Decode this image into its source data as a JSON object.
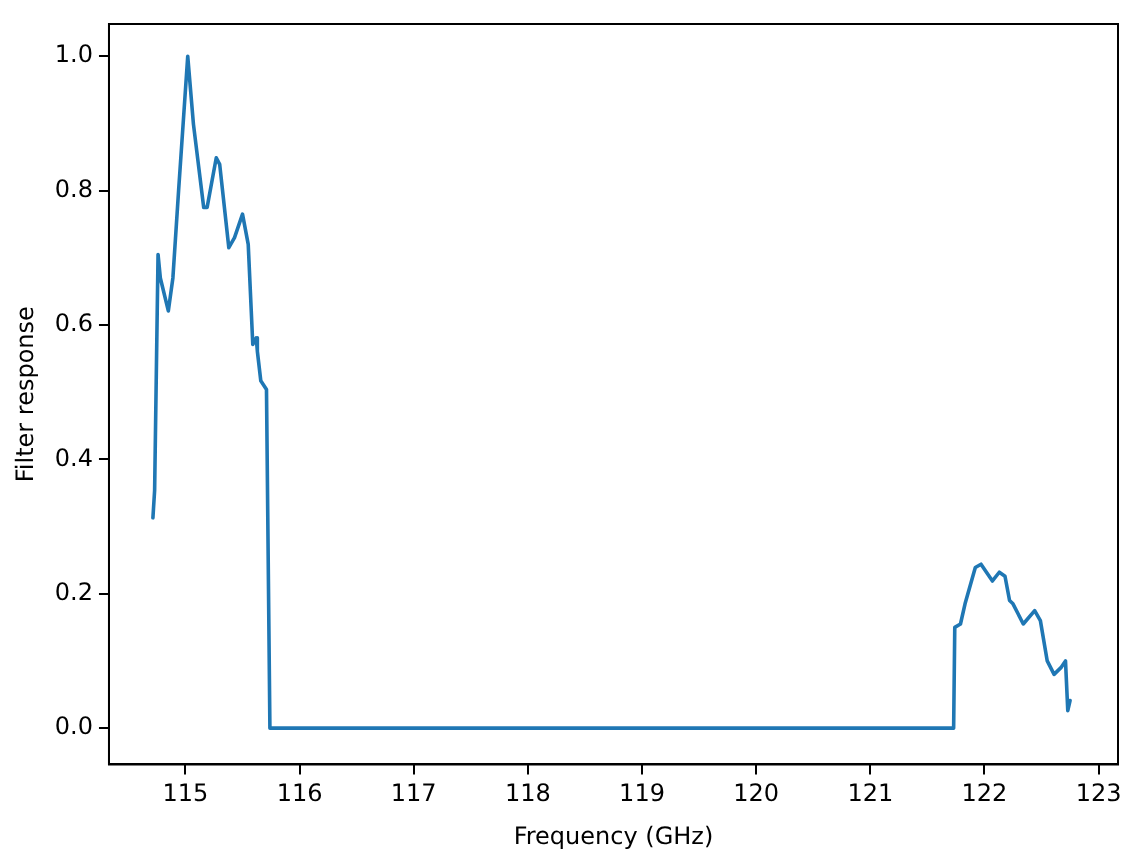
{
  "chart_data": {
    "type": "line",
    "xlabel": "Frequency (GHz)",
    "ylabel": "Filter response",
    "xlim": [
      114.33,
      123.17
    ],
    "ylim": [
      -0.054,
      1.048
    ],
    "xticks": [
      115,
      116,
      117,
      118,
      119,
      120,
      121,
      122,
      123
    ],
    "yticks": [
      {
        "value": 0,
        "label": "0.0"
      },
      {
        "value": 0.2,
        "label": "0.2"
      },
      {
        "value": 0.4,
        "label": "0.4"
      },
      {
        "value": 0.6,
        "label": "0.6"
      },
      {
        "value": 0.8,
        "label": "0.8"
      },
      {
        "value": 1,
        "label": "1.0"
      }
    ],
    "grid": false,
    "legend": false,
    "marker": "none",
    "line_style": "solid",
    "series": [
      {
        "color": "#1f77b4",
        "x": [
          114.715,
          114.73,
          114.76,
          114.78,
          114.85,
          114.89,
          114.94,
          115.02,
          115.07,
          115.16,
          115.19,
          115.27,
          115.3,
          115.38,
          115.43,
          115.5,
          115.55,
          115.59,
          115.62,
          115.63,
          115.66,
          115.71,
          115.72,
          115.74,
          121.73,
          121.74,
          121.79,
          121.83,
          121.92,
          121.97,
          122.01,
          122.07,
          122.13,
          122.18,
          122.22,
          122.25,
          122.34,
          122.44,
          122.49,
          122.55,
          122.61,
          122.67,
          122.71,
          122.73,
          122.75
        ],
        "values": [
          0.313,
          0.354,
          0.705,
          0.67,
          0.621,
          0.67,
          0.8,
          1.0,
          0.899,
          0.775,
          0.775,
          0.849,
          0.839,
          0.715,
          0.73,
          0.765,
          0.72,
          0.571,
          0.581,
          0.561,
          0.517,
          0.504,
          0.504,
          0.0,
          0.0,
          0.15,
          0.155,
          0.185,
          0.239,
          0.244,
          0.234,
          0.219,
          0.232,
          0.226,
          0.19,
          0.185,
          0.155,
          0.175,
          0.16,
          0.1,
          0.08,
          0.09,
          0.1,
          0.026,
          0.041
        ]
      }
    ]
  }
}
